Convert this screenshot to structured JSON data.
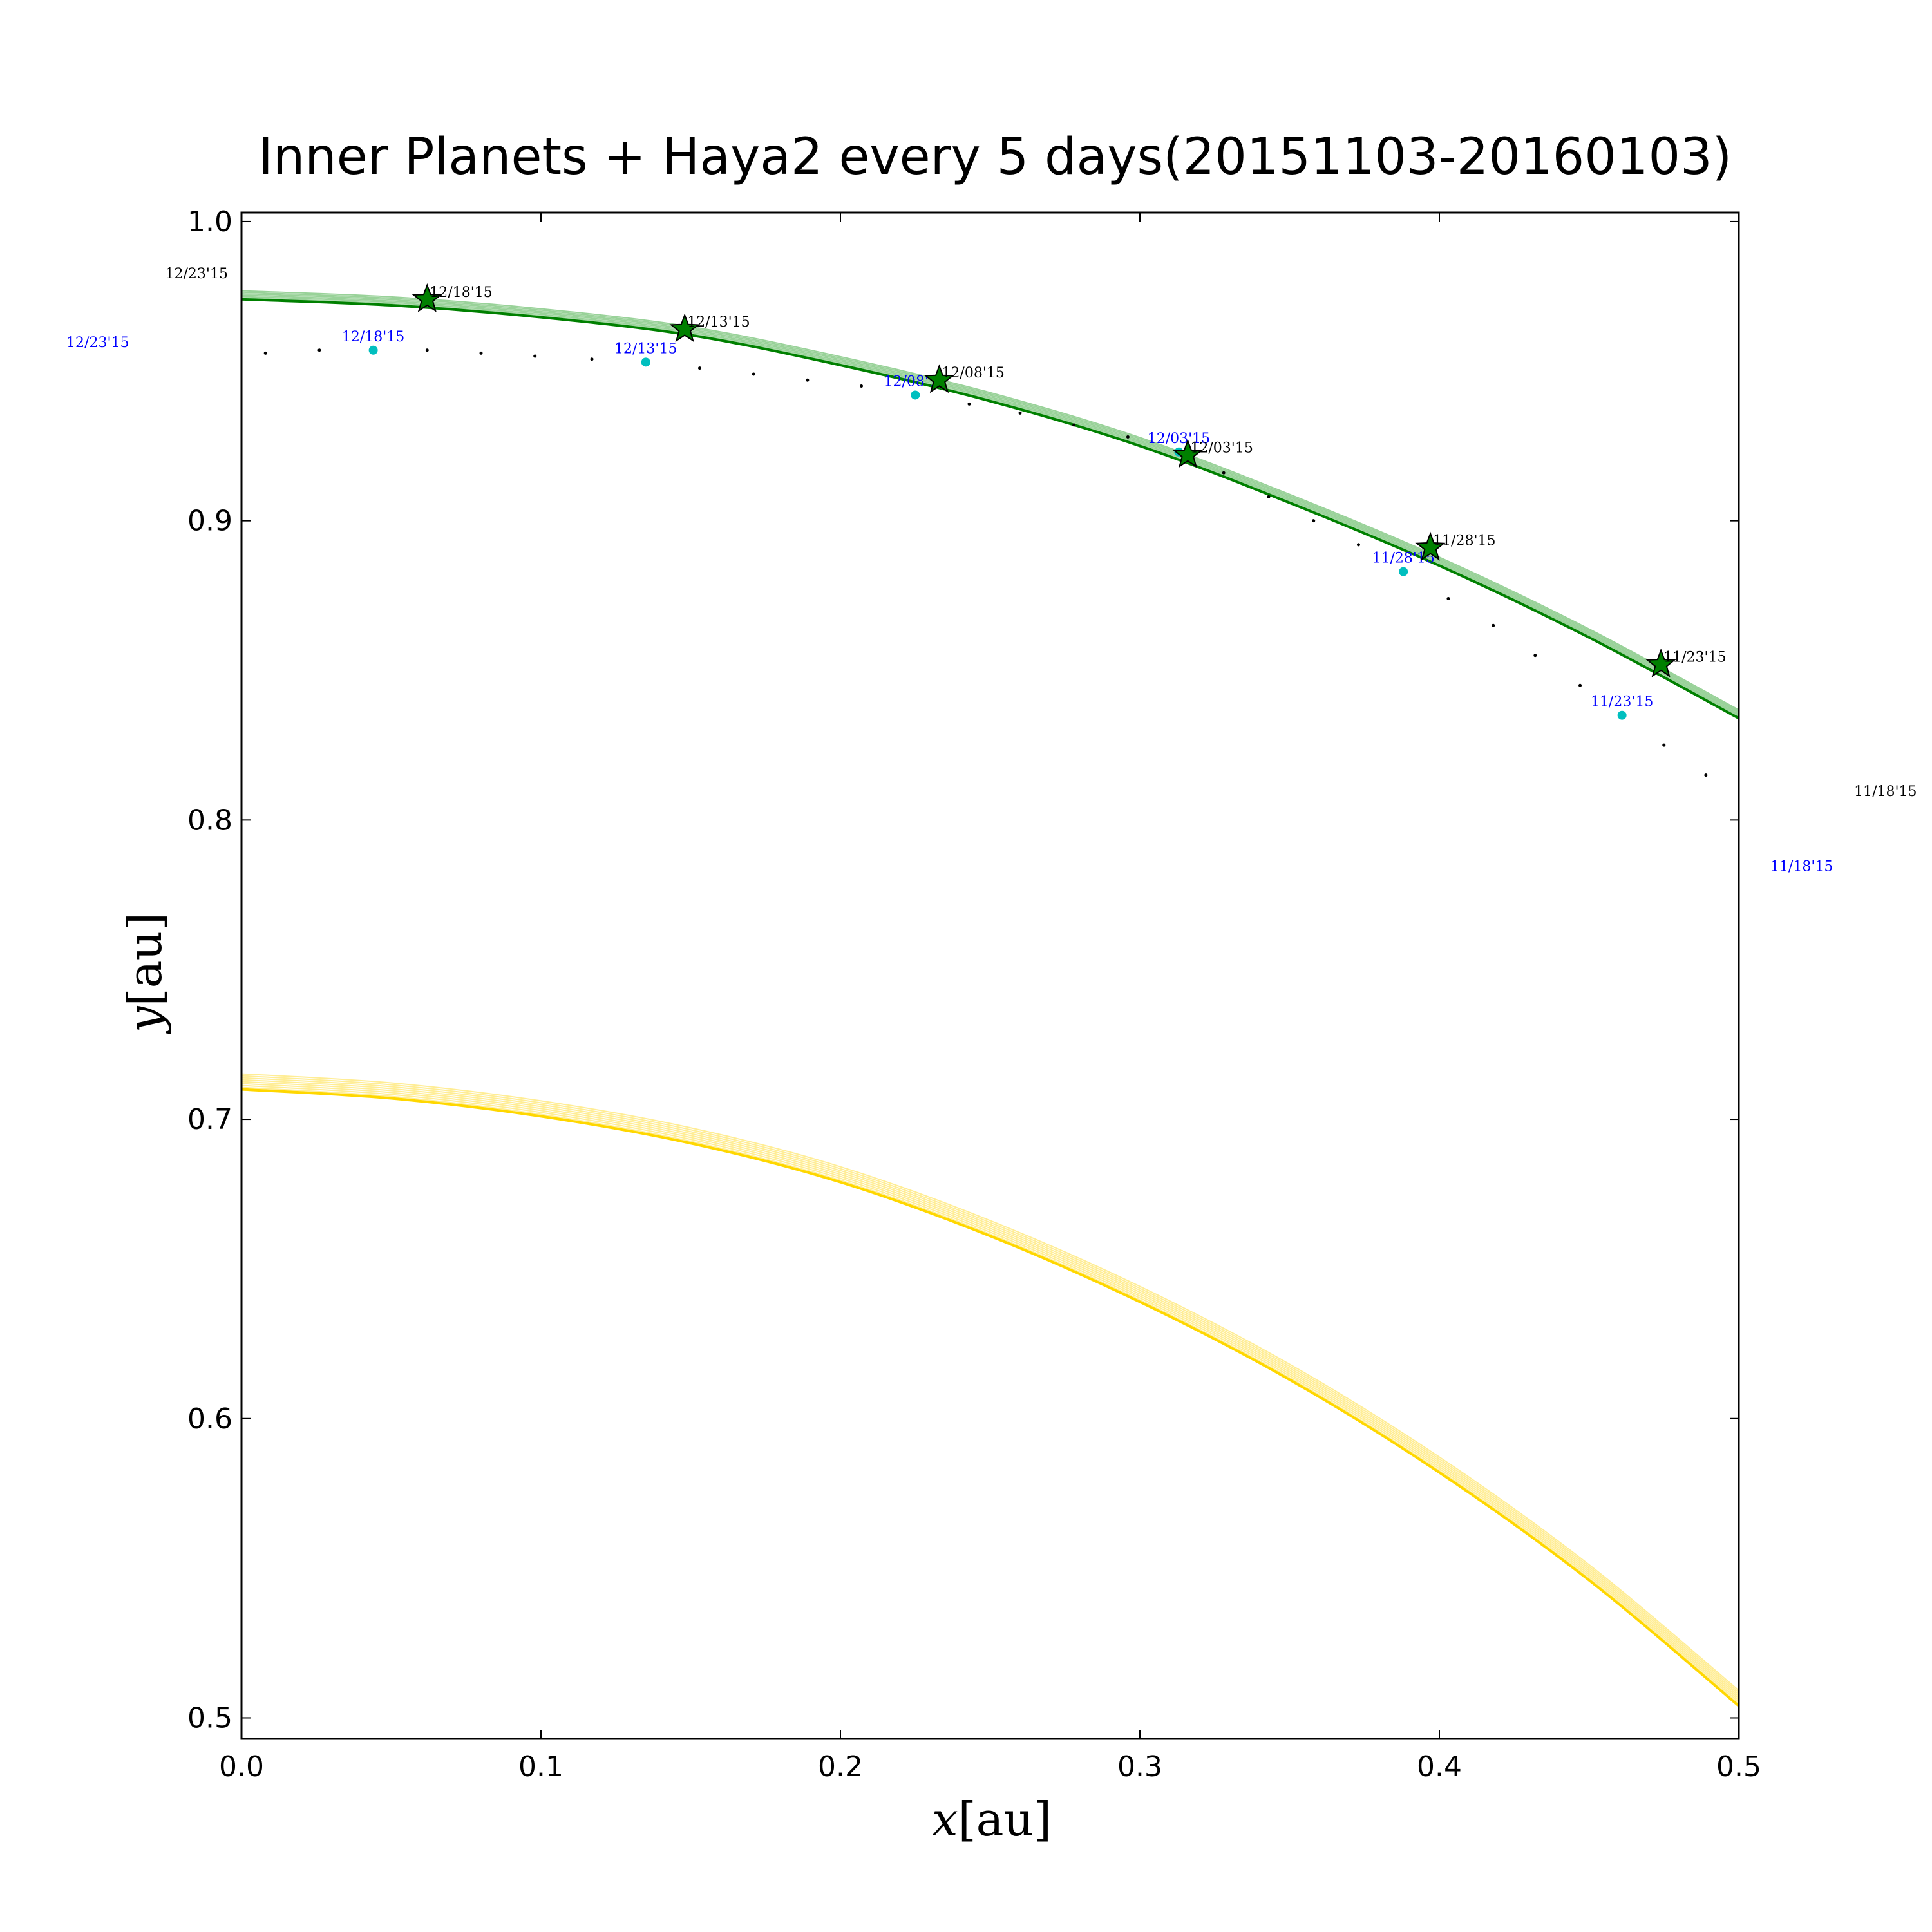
{
  "chart_data": {
    "type": "line",
    "title": "Inner Planets + Haya2 every 5 days(20151103-20160103)",
    "xlabel": "x",
    "xlabel_unit": "[au]",
    "ylabel": "y",
    "ylabel_unit": "[au]",
    "xlim": [
      0.0,
      0.5
    ],
    "ylim": [
      0.493,
      1.003
    ],
    "xticks": [
      "0.0",
      "0.1",
      "0.2",
      "0.3",
      "0.4",
      "0.5"
    ],
    "yticks": [
      "0.5",
      "0.6",
      "0.7",
      "0.8",
      "0.9",
      "1.0"
    ],
    "grid": false,
    "colors": {
      "earth_orbit": "#008000",
      "earth_orbit_band": "#7fc77f",
      "venus_orbit": "#ffd700",
      "venus_orbit_band": "#ffe97a",
      "earth_marker": "#008000",
      "hayabusa2_marker": "#00bfbf",
      "hayabusa2_label": "#0000ff",
      "trajectory_dots": "#000000"
    },
    "series": [
      {
        "kind": "earth-orbit",
        "x": [
          0.0,
          0.05,
          0.1,
          0.15,
          0.2,
          0.25,
          0.3,
          0.35,
          0.4,
          0.45,
          0.5
        ],
        "y": [
          0.974,
          0.972,
          0.968,
          0.962,
          0.952,
          0.94,
          0.925,
          0.906,
          0.885,
          0.861,
          0.834
        ]
      },
      {
        "kind": "venus-orbit",
        "x": [
          0.0,
          0.05,
          0.1,
          0.15,
          0.2,
          0.25,
          0.3,
          0.35,
          0.4,
          0.45,
          0.5
        ],
        "y": [
          0.71,
          0.707,
          0.701,
          0.692,
          0.679,
          0.661,
          0.639,
          0.613,
          0.582,
          0.546,
          0.504
        ]
      },
      {
        "kind": "earth-positions",
        "x": [
          0.062,
          0.148,
          0.233,
          0.316,
          0.397,
          0.474
        ],
        "y": [
          0.974,
          0.964,
          0.947,
          0.922,
          0.891,
          0.852
        ],
        "labels": [
          "12/18'15",
          "12/13'15",
          "12/08'15",
          "12/03'15",
          "11/28'15",
          "11/23'15"
        ]
      },
      {
        "kind": "hayabusa2-positions",
        "x": [
          0.044,
          0.135,
          0.225,
          0.313,
          0.388,
          0.461
        ],
        "y": [
          0.957,
          0.953,
          0.942,
          0.923,
          0.883,
          0.835
        ],
        "labels": [
          "12/18'15",
          "12/13'15",
          "12/08'15",
          "12/03'15",
          "11/28'15",
          "11/23'15"
        ]
      },
      {
        "kind": "hayabusa2-daily-dots",
        "x": [
          0.008,
          0.026,
          0.044,
          0.062,
          0.08,
          0.098,
          0.117,
          0.135,
          0.153,
          0.171,
          0.189,
          0.207,
          0.225,
          0.243,
          0.26,
          0.278,
          0.296,
          0.313,
          0.328,
          0.343,
          0.358,
          0.373,
          0.388,
          0.403,
          0.418,
          0.432,
          0.447,
          0.461,
          0.475,
          0.489
        ],
        "y": [
          0.956,
          0.957,
          0.957,
          0.957,
          0.956,
          0.955,
          0.954,
          0.953,
          0.951,
          0.949,
          0.947,
          0.945,
          0.942,
          0.939,
          0.936,
          0.932,
          0.928,
          0.923,
          0.916,
          0.908,
          0.9,
          0.892,
          0.883,
          0.874,
          0.865,
          0.855,
          0.845,
          0.835,
          0.825,
          0.815
        ]
      }
    ],
    "outside_labels": [
      {
        "text": "12/23'15",
        "color": "black",
        "x": -0.015,
        "y": 0.981
      },
      {
        "text": "12/23'15",
        "color": "blue",
        "x": -0.048,
        "y": 0.958
      },
      {
        "text": "11/18'15",
        "color": "black",
        "x": 0.549,
        "y": 0.808
      },
      {
        "text": "11/18'15",
        "color": "blue",
        "x": 0.521,
        "y": 0.783
      }
    ]
  }
}
